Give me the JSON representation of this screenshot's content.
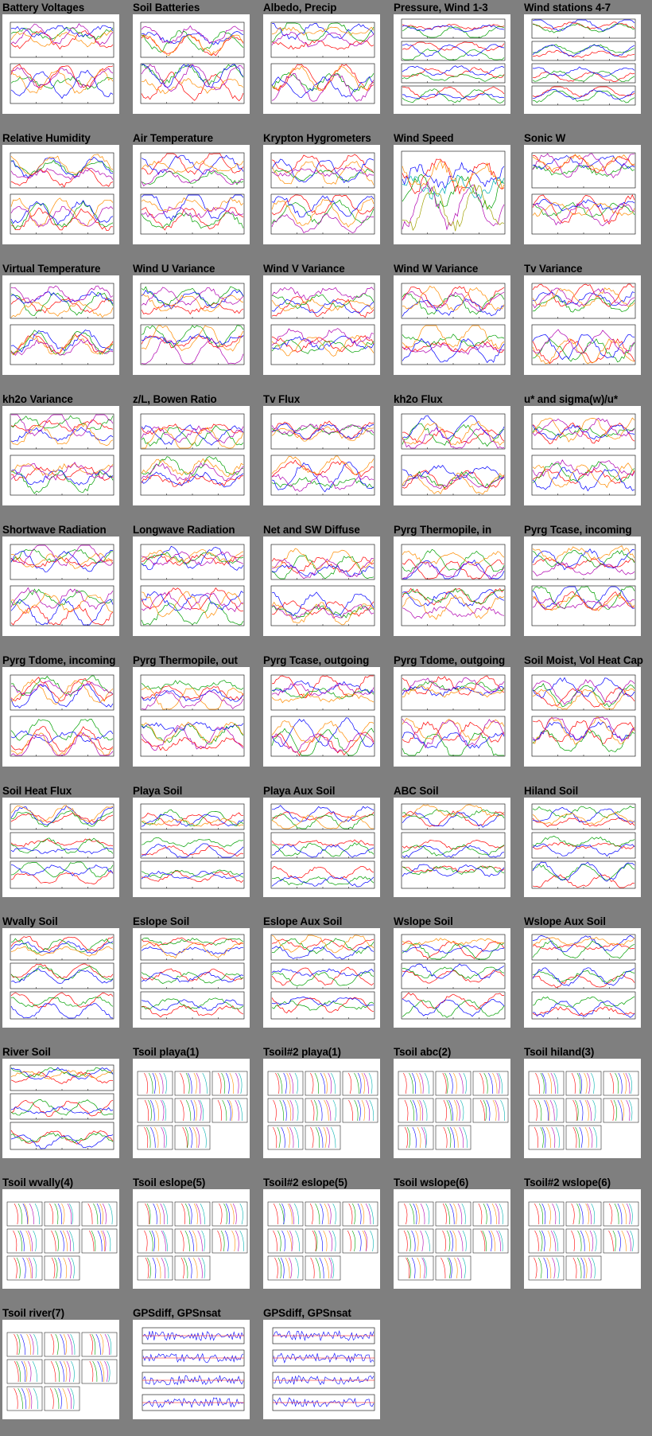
{
  "page": {
    "plots": [
      {
        "title": "Battery Voltages",
        "kind": "two"
      },
      {
        "title": "Soil Batteries",
        "kind": "two"
      },
      {
        "title": "Albedo, Precip",
        "kind": "two"
      },
      {
        "title": "Pressure, Wind 1-3",
        "kind": "multi"
      },
      {
        "title": "Wind stations 4-7",
        "kind": "multi"
      },
      {
        "title": "Relative Humidity",
        "kind": "two"
      },
      {
        "title": "Air Temperature",
        "kind": "two"
      },
      {
        "title": "Krypton Hygrometers",
        "kind": "two"
      },
      {
        "title": "Wind Speed",
        "kind": "one"
      },
      {
        "title": "Sonic W",
        "kind": "two"
      },
      {
        "title": "Virtual Temperature",
        "kind": "two"
      },
      {
        "title": "Wind U Variance",
        "kind": "two"
      },
      {
        "title": "Wind V Variance",
        "kind": "two"
      },
      {
        "title": "Wind W Variance",
        "kind": "two"
      },
      {
        "title": "Tv Variance",
        "kind": "two"
      },
      {
        "title": "kh2o Variance",
        "kind": "two"
      },
      {
        "title": "z/L, Bowen Ratio",
        "kind": "two"
      },
      {
        "title": "Tv Flux",
        "kind": "two"
      },
      {
        "title": "kh2o Flux",
        "kind": "two"
      },
      {
        "title": "u* and sigma(w)/u*",
        "kind": "two"
      },
      {
        "title": "Shortwave Radiation",
        "kind": "two"
      },
      {
        "title": "Longwave Radiation",
        "kind": "two"
      },
      {
        "title": "Net and SW Diffuse",
        "kind": "two"
      },
      {
        "title": "Pyrg Thermopile, in",
        "kind": "two"
      },
      {
        "title": "Pyrg Tcase, incoming",
        "kind": "two"
      },
      {
        "title": "Pyrg Tdome, incoming",
        "kind": "two"
      },
      {
        "title": "Pyrg Thermopile, out",
        "kind": "two"
      },
      {
        "title": "Pyrg Tcase, outgoing",
        "kind": "two"
      },
      {
        "title": "Pyrg Tdome, outgoing",
        "kind": "two"
      },
      {
        "title": "Soil Moist, Vol Heat Cap",
        "kind": "two"
      },
      {
        "title": "Soil Heat Flux",
        "kind": "three"
      },
      {
        "title": "Playa Soil",
        "kind": "three"
      },
      {
        "title": "Playa Aux Soil",
        "kind": "three"
      },
      {
        "title": "ABC Soil",
        "kind": "three"
      },
      {
        "title": "Hiland Soil",
        "kind": "three"
      },
      {
        "title": "Wvally Soil",
        "kind": "three"
      },
      {
        "title": "Eslope Soil",
        "kind": "three"
      },
      {
        "title": "Eslope Aux Soil",
        "kind": "three"
      },
      {
        "title": "Wslope Soil",
        "kind": "three"
      },
      {
        "title": "Wslope Aux Soil",
        "kind": "three"
      },
      {
        "title": "River Soil",
        "kind": "three"
      },
      {
        "title": "Tsoil playa(1)",
        "kind": "tsoil"
      },
      {
        "title": "Tsoil#2 playa(1)",
        "kind": "tsoil"
      },
      {
        "title": "Tsoil abc(2)",
        "kind": "tsoil"
      },
      {
        "title": "Tsoil hiland(3)",
        "kind": "tsoil"
      },
      {
        "title": "Tsoil wvally(4)",
        "kind": "tsoil"
      },
      {
        "title": "Tsoil eslope(5)",
        "kind": "tsoil"
      },
      {
        "title": "Tsoil#2 eslope(5)",
        "kind": "tsoil"
      },
      {
        "title": "Tsoil wslope(6)",
        "kind": "tsoil"
      },
      {
        "title": "Tsoil#2 wslope(6)",
        "kind": "tsoil"
      },
      {
        "title": "Tsoil river(7)",
        "kind": "tsoil"
      },
      {
        "title": "GPSdiff, GPSnsat",
        "kind": "gps"
      },
      {
        "title": "GPSdiff, GPSnsat",
        "kind": "gps"
      }
    ],
    "colors": {
      "background": "#7f7f7f",
      "series": [
        "#000000",
        "#ff0000",
        "#00a000",
        "#0000ff",
        "#ff8c00",
        "#b000b0",
        "#00b0b0",
        "#a0a000",
        "#7fff00"
      ]
    }
  }
}
